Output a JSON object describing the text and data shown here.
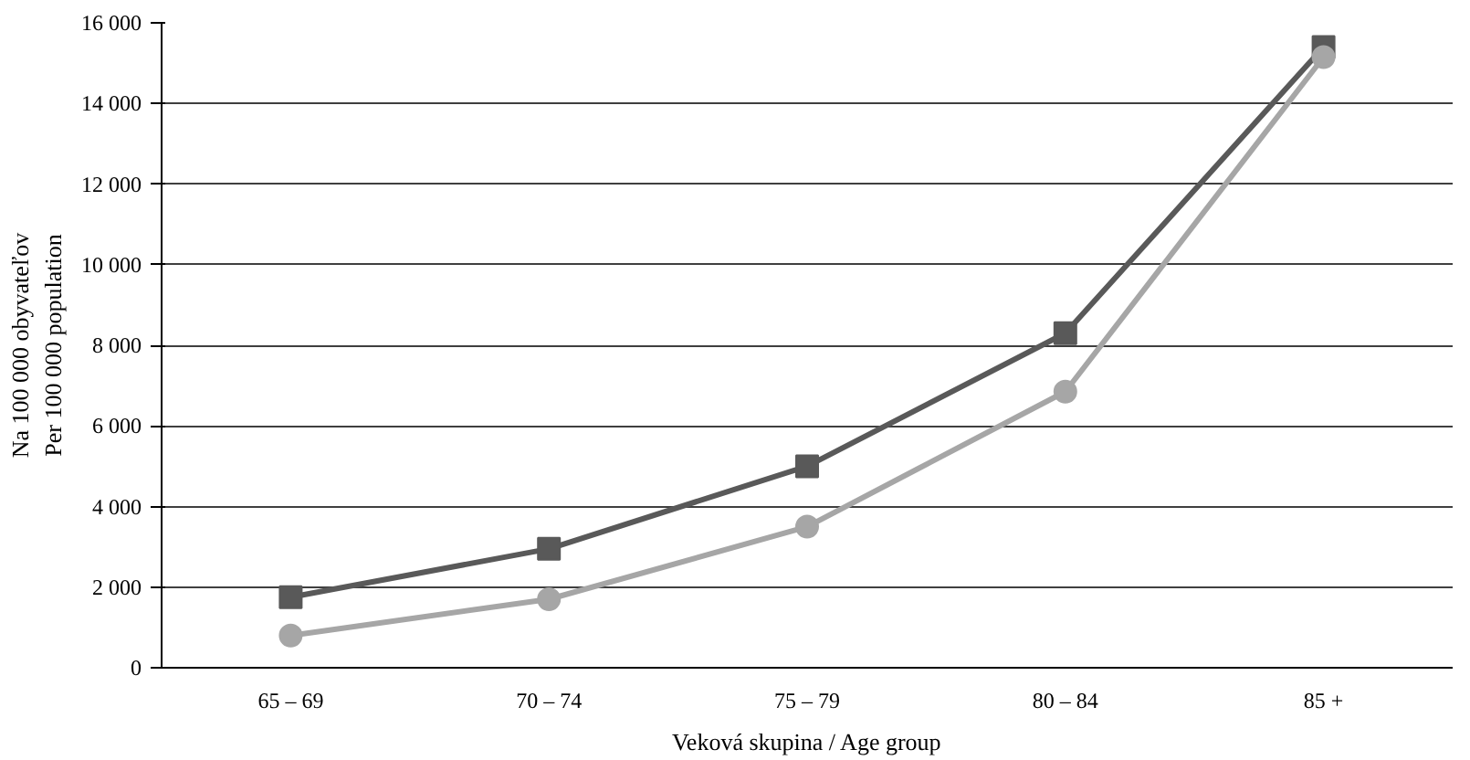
{
  "chart_data": {
    "type": "line",
    "xlabel": "Veková skupina / Age group",
    "ylabel": "Na 100 000 obyvateľov\nPer 100 000 population",
    "categories": [
      "65 – 69",
      "70 – 74",
      "75 – 79",
      "80 – 84",
      "85 +"
    ],
    "series": [
      {
        "color": "#595959",
        "marker": "square",
        "values": [
          1750,
          2950,
          5000,
          8300,
          15400
        ]
      },
      {
        "color": "#a6a6a6",
        "marker": "circle",
        "values": [
          800,
          1700,
          3500,
          6850,
          15150
        ]
      }
    ],
    "ylim": [
      0,
      16000
    ],
    "yticks": [
      {
        "value": 0,
        "label": "0"
      },
      {
        "value": 2000,
        "label": "2 000"
      },
      {
        "value": 4000,
        "label": "4 000"
      },
      {
        "value": 6000,
        "label": "6 000"
      },
      {
        "value": 8000,
        "label": "8 000"
      },
      {
        "value": 10000,
        "label": "10 000"
      },
      {
        "value": 12000,
        "label": "12 000"
      },
      {
        "value": 14000,
        "label": "14 000"
      },
      {
        "value": 16000,
        "label": "16 000"
      }
    ],
    "grid": "y",
    "line_style": "solid"
  }
}
